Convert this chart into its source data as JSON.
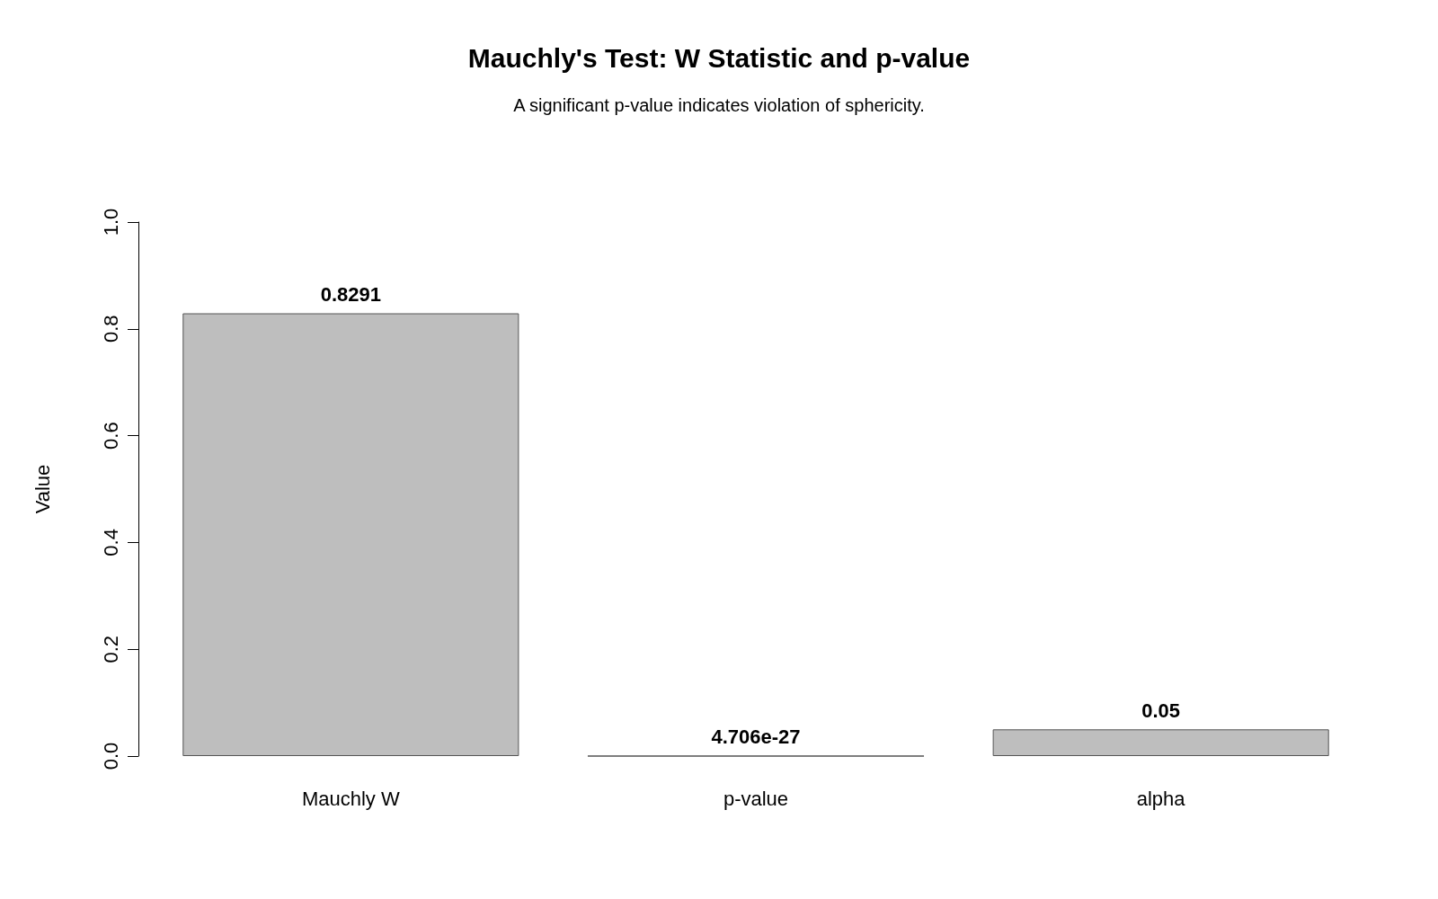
{
  "chart_data": {
    "type": "bar",
    "title": "Mauchly's Test: W Statistic and p-value",
    "subtitle": "A significant p-value indicates violation of sphericity.",
    "ylabel": "Value",
    "categories": [
      "Mauchly W",
      "p-value",
      "alpha"
    ],
    "values": [
      0.8291,
      4.706e-27,
      0.05
    ],
    "color": "#bebebe",
    "ylim": [
      0,
      1
    ],
    "yticks": [
      {
        "value": 0,
        "label": "0.0"
      },
      0.2,
      0.4,
      0.6,
      0.8,
      {
        "value": 1,
        "label": "1.0"
      }
    ],
    "data_labels": true
  }
}
